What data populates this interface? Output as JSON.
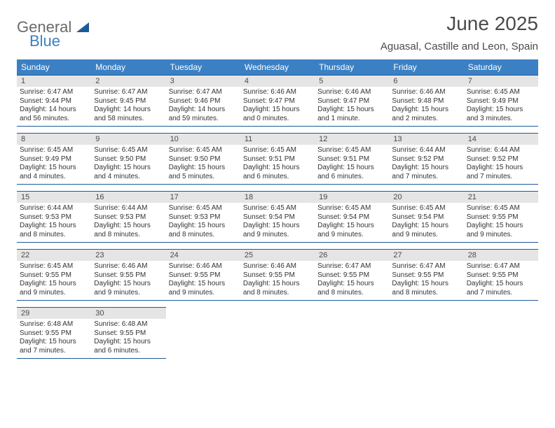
{
  "brand": {
    "word1": "General",
    "word2": "Blue"
  },
  "title": "June 2025",
  "location": "Aguasal, Castille and Leon, Spain",
  "colors": {
    "header_bg": "#3b80c2",
    "header_fg": "#ffffff",
    "rule": "#1c5a9a",
    "daynum_bg": "#e5e5e5",
    "text": "#4a4a4a",
    "logo_gray": "#6a6a6a",
    "logo_blue": "#3b80c2",
    "logo_mark": "#1c5a9a"
  },
  "typography": {
    "title_pt": 28,
    "location_pt": 15,
    "header_pt": 12,
    "daynum_pt": 11,
    "body_pt": 10
  },
  "weekdays": [
    "Sunday",
    "Monday",
    "Tuesday",
    "Wednesday",
    "Thursday",
    "Friday",
    "Saturday"
  ],
  "weeks": [
    [
      {
        "n": "1",
        "sr": "6:47 AM",
        "ss": "9:44 PM",
        "dl": "14 hours and 56 minutes."
      },
      {
        "n": "2",
        "sr": "6:47 AM",
        "ss": "9:45 PM",
        "dl": "14 hours and 58 minutes."
      },
      {
        "n": "3",
        "sr": "6:47 AM",
        "ss": "9:46 PM",
        "dl": "14 hours and 59 minutes."
      },
      {
        "n": "4",
        "sr": "6:46 AM",
        "ss": "9:47 PM",
        "dl": "15 hours and 0 minutes."
      },
      {
        "n": "5",
        "sr": "6:46 AM",
        "ss": "9:47 PM",
        "dl": "15 hours and 1 minute."
      },
      {
        "n": "6",
        "sr": "6:46 AM",
        "ss": "9:48 PM",
        "dl": "15 hours and 2 minutes."
      },
      {
        "n": "7",
        "sr": "6:45 AM",
        "ss": "9:49 PM",
        "dl": "15 hours and 3 minutes."
      }
    ],
    [
      {
        "n": "8",
        "sr": "6:45 AM",
        "ss": "9:49 PM",
        "dl": "15 hours and 4 minutes."
      },
      {
        "n": "9",
        "sr": "6:45 AM",
        "ss": "9:50 PM",
        "dl": "15 hours and 4 minutes."
      },
      {
        "n": "10",
        "sr": "6:45 AM",
        "ss": "9:50 PM",
        "dl": "15 hours and 5 minutes."
      },
      {
        "n": "11",
        "sr": "6:45 AM",
        "ss": "9:51 PM",
        "dl": "15 hours and 6 minutes."
      },
      {
        "n": "12",
        "sr": "6:45 AM",
        "ss": "9:51 PM",
        "dl": "15 hours and 6 minutes."
      },
      {
        "n": "13",
        "sr": "6:44 AM",
        "ss": "9:52 PM",
        "dl": "15 hours and 7 minutes."
      },
      {
        "n": "14",
        "sr": "6:44 AM",
        "ss": "9:52 PM",
        "dl": "15 hours and 7 minutes."
      }
    ],
    [
      {
        "n": "15",
        "sr": "6:44 AM",
        "ss": "9:53 PM",
        "dl": "15 hours and 8 minutes."
      },
      {
        "n": "16",
        "sr": "6:44 AM",
        "ss": "9:53 PM",
        "dl": "15 hours and 8 minutes."
      },
      {
        "n": "17",
        "sr": "6:45 AM",
        "ss": "9:53 PM",
        "dl": "15 hours and 8 minutes."
      },
      {
        "n": "18",
        "sr": "6:45 AM",
        "ss": "9:54 PM",
        "dl": "15 hours and 9 minutes."
      },
      {
        "n": "19",
        "sr": "6:45 AM",
        "ss": "9:54 PM",
        "dl": "15 hours and 9 minutes."
      },
      {
        "n": "20",
        "sr": "6:45 AM",
        "ss": "9:54 PM",
        "dl": "15 hours and 9 minutes."
      },
      {
        "n": "21",
        "sr": "6:45 AM",
        "ss": "9:55 PM",
        "dl": "15 hours and 9 minutes."
      }
    ],
    [
      {
        "n": "22",
        "sr": "6:45 AM",
        "ss": "9:55 PM",
        "dl": "15 hours and 9 minutes."
      },
      {
        "n": "23",
        "sr": "6:46 AM",
        "ss": "9:55 PM",
        "dl": "15 hours and 9 minutes."
      },
      {
        "n": "24",
        "sr": "6:46 AM",
        "ss": "9:55 PM",
        "dl": "15 hours and 9 minutes."
      },
      {
        "n": "25",
        "sr": "6:46 AM",
        "ss": "9:55 PM",
        "dl": "15 hours and 8 minutes."
      },
      {
        "n": "26",
        "sr": "6:47 AM",
        "ss": "9:55 PM",
        "dl": "15 hours and 8 minutes."
      },
      {
        "n": "27",
        "sr": "6:47 AM",
        "ss": "9:55 PM",
        "dl": "15 hours and 8 minutes."
      },
      {
        "n": "28",
        "sr": "6:47 AM",
        "ss": "9:55 PM",
        "dl": "15 hours and 7 minutes."
      }
    ],
    [
      {
        "n": "29",
        "sr": "6:48 AM",
        "ss": "9:55 PM",
        "dl": "15 hours and 7 minutes."
      },
      {
        "n": "30",
        "sr": "6:48 AM",
        "ss": "9:55 PM",
        "dl": "15 hours and 6 minutes."
      },
      null,
      null,
      null,
      null,
      null
    ]
  ],
  "labels": {
    "sunrise": "Sunrise:",
    "sunset": "Sunset:",
    "daylight": "Daylight:"
  }
}
